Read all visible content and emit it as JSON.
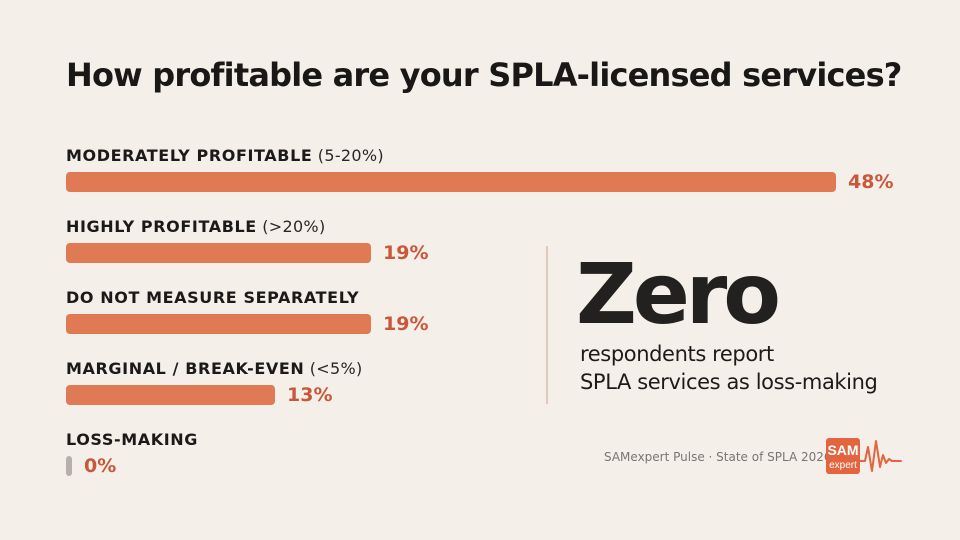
{
  "chart_data": {
    "type": "bar",
    "orientation": "horizontal",
    "title": "How profitable are your SPLA-licensed services?",
    "categories": [
      "MODERATELY PROFITABLE (5-20%)",
      "HIGHLY PROFITABLE (>20%)",
      "DO NOT MEASURE SEPARATELY",
      "MARGINAL / BREAK-EVEN (<5%)",
      "LOSS-MAKING"
    ],
    "category_labels": [
      {
        "main": "MODERATELY PROFITABLE",
        "sub": " (5-20%)"
      },
      {
        "main": "HIGHLY PROFITABLE",
        "sub": " (>20%)"
      },
      {
        "main": "DO NOT MEASURE SEPARATELY",
        "sub": ""
      },
      {
        "main": "MARGINAL / BREAK-EVEN",
        "sub": " (<5%)"
      },
      {
        "main": "LOSS-MAKING",
        "sub": ""
      }
    ],
    "values": [
      48,
      19,
      19,
      13,
      0
    ],
    "value_labels": [
      "48%",
      "19%",
      "19%",
      "13%",
      "0%"
    ],
    "unit": "%",
    "xlim": [
      0,
      48
    ],
    "grid": false,
    "legend": "none",
    "bar_color": "#df7a55",
    "value_label_color": "#c9583a",
    "zero_bar_color": "#b4b0ab"
  },
  "callout": {
    "headline": "Zero",
    "line1": "respondents report",
    "line2": "SPLA services as loss-making"
  },
  "source": "SAMexpert Pulse · State of SPLA 2026",
  "logo": {
    "line1": "SAM",
    "line2": "expert",
    "icon": "heartbeat-pulse-icon",
    "color": "#e2653f"
  }
}
